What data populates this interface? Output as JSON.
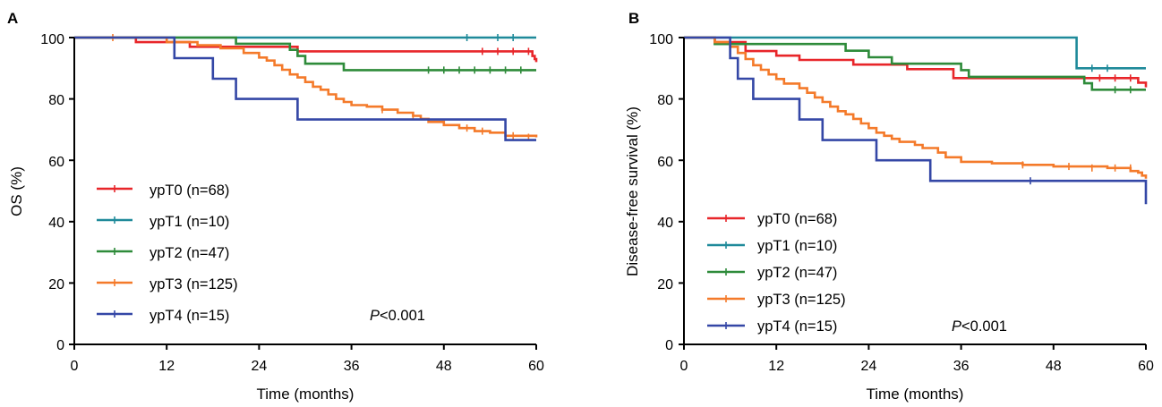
{
  "colors": {
    "ypT0": "#e8262a",
    "ypT1": "#1f8a9a",
    "ypT2": "#2e8b3a",
    "ypT3": "#f47a2a",
    "ypT4": "#3447a6"
  },
  "chart_data": [
    {
      "type": "line",
      "panel": "A",
      "xlabel": "Time (months)",
      "ylabel": "OS (%)",
      "xlim": [
        0,
        60
      ],
      "ylim": [
        0,
        100
      ],
      "xticks": [
        0,
        12,
        24,
        36,
        48,
        60
      ],
      "yticks": [
        0,
        20,
        40,
        60,
        80,
        100
      ],
      "grid": false,
      "legend_position": "bottom-left",
      "annotation": {
        "italic": "P",
        "rest": "<0.001"
      },
      "series": [
        {
          "name": "ypT0 (n=68)",
          "color": "ypT0",
          "steps": [
            [
              0,
              100
            ],
            [
              8,
              98.5
            ],
            [
              15,
              97
            ],
            [
              29,
              95.5
            ],
            [
              59.5,
              94
            ],
            [
              59.8,
              93
            ],
            [
              60,
              92
            ]
          ],
          "censors": [
            [
              53,
              95.5
            ],
            [
              55,
              95.5
            ],
            [
              57,
              95.5
            ],
            [
              59,
              95.5
            ]
          ]
        },
        {
          "name": "ypT1 (n=10)",
          "color": "ypT1",
          "steps": [
            [
              0,
              100
            ],
            [
              60,
              100
            ]
          ],
          "censors": [
            [
              51,
              100
            ],
            [
              55,
              100
            ],
            [
              57,
              100
            ]
          ]
        },
        {
          "name": "ypT2 (n=47)",
          "color": "ypT2",
          "steps": [
            [
              0,
              100
            ],
            [
              21,
              98
            ],
            [
              28,
              96
            ],
            [
              29,
              94
            ],
            [
              30,
              91.5
            ],
            [
              35,
              89.4
            ],
            [
              60,
              89.4
            ]
          ],
          "censors": [
            [
              46,
              89.4
            ],
            [
              48,
              89.4
            ],
            [
              50,
              89.4
            ],
            [
              52,
              89.4
            ],
            [
              54,
              89.4
            ],
            [
              56,
              89.4
            ],
            [
              58,
              89.4
            ]
          ]
        },
        {
          "name": "ypT3 (n=125)",
          "color": "ypT3",
          "steps": [
            [
              0,
              100
            ],
            [
              12,
              98.5
            ],
            [
              16,
              97.5
            ],
            [
              19,
              96.5
            ],
            [
              22,
              95
            ],
            [
              24,
              93.5
            ],
            [
              25,
              92.5
            ],
            [
              26,
              91
            ],
            [
              27,
              89.5
            ],
            [
              28,
              88
            ],
            [
              29,
              87
            ],
            [
              30,
              85.5
            ],
            [
              31,
              84
            ],
            [
              32,
              83
            ],
            [
              33,
              81.5
            ],
            [
              34,
              80
            ],
            [
              35,
              79
            ],
            [
              36,
              78
            ],
            [
              38,
              77.5
            ],
            [
              40,
              76.5
            ],
            [
              42,
              75.5
            ],
            [
              44,
              74.5
            ],
            [
              45,
              73.5
            ],
            [
              46,
              72.5
            ],
            [
              48,
              71.5
            ],
            [
              50,
              70.5
            ],
            [
              52,
              69.5
            ],
            [
              54,
              69
            ],
            [
              56,
              68
            ],
            [
              60,
              67.5
            ]
          ],
          "censors": [
            [
              5,
              100
            ],
            [
              40,
              76.5
            ],
            [
              44,
              74.5
            ],
            [
              51,
              70.5
            ],
            [
              53,
              69.5
            ],
            [
              57,
              68
            ],
            [
              59,
              67.5
            ]
          ]
        },
        {
          "name": "ypT4 (n=15)",
          "color": "ypT4",
          "steps": [
            [
              0,
              100
            ],
            [
              13,
              93.3
            ],
            [
              18,
              86.6
            ],
            [
              21,
              80
            ],
            [
              29,
              73.3
            ],
            [
              56,
              66.6
            ],
            [
              60,
              66.6
            ]
          ],
          "censors": []
        }
      ]
    },
    {
      "type": "line",
      "panel": "B",
      "xlabel": "Time (months)",
      "ylabel": "Disease-free survival (%)",
      "xlim": [
        0,
        60
      ],
      "ylim": [
        0,
        100
      ],
      "xticks": [
        0,
        12,
        24,
        36,
        48,
        60
      ],
      "yticks": [
        0,
        20,
        40,
        60,
        80,
        100
      ],
      "grid": false,
      "legend_position": "bottom-left",
      "annotation": {
        "italic": "P",
        "rest": "<0.001"
      },
      "series": [
        {
          "name": "ypT0 (n=68)",
          "color": "ypT0",
          "steps": [
            [
              0,
              100
            ],
            [
              4,
              98.5
            ],
            [
              8,
              95.6
            ],
            [
              12,
              94.1
            ],
            [
              15,
              92.7
            ],
            [
              22,
              91.2
            ],
            [
              29,
              89.7
            ],
            [
              35,
              86.8
            ],
            [
              59,
              85.3
            ],
            [
              60,
              83.8
            ]
          ],
          "censors": [
            [
              54,
              86.8
            ],
            [
              56,
              86.8
            ],
            [
              58,
              86.8
            ]
          ]
        },
        {
          "name": "ypT1 (n=10)",
          "color": "ypT1",
          "steps": [
            [
              0,
              100
            ],
            [
              51,
              90
            ],
            [
              60,
              90
            ]
          ],
          "censors": [
            [
              53,
              90
            ],
            [
              55,
              90
            ]
          ]
        },
        {
          "name": "ypT2 (n=47)",
          "color": "ypT2",
          "steps": [
            [
              0,
              100
            ],
            [
              4,
              97.9
            ],
            [
              21,
              95.7
            ],
            [
              24,
              93.6
            ],
            [
              27,
              91.5
            ],
            [
              36,
              89.4
            ],
            [
              37,
              87.2
            ],
            [
              52,
              85.1
            ],
            [
              53,
              83
            ],
            [
              60,
              83
            ]
          ],
          "censors": [
            [
              56,
              83
            ],
            [
              58,
              83
            ]
          ]
        },
        {
          "name": "ypT3 (n=125)",
          "color": "ypT3",
          "steps": [
            [
              0,
              100
            ],
            [
              4,
              98.5
            ],
            [
              6,
              97
            ],
            [
              7,
              95
            ],
            [
              8,
              93
            ],
            [
              9,
              91
            ],
            [
              10,
              89.5
            ],
            [
              11,
              88
            ],
            [
              12,
              86.5
            ],
            [
              13,
              85
            ],
            [
              15,
              83.5
            ],
            [
              16,
              82
            ],
            [
              17,
              80.5
            ],
            [
              18,
              79
            ],
            [
              19,
              77.5
            ],
            [
              20,
              76
            ],
            [
              21,
              75
            ],
            [
              22,
              73.5
            ],
            [
              23,
              72
            ],
            [
              24,
              70.5
            ],
            [
              25,
              69
            ],
            [
              26,
              68
            ],
            [
              27,
              67
            ],
            [
              28,
              66
            ],
            [
              30,
              65
            ],
            [
              31,
              64
            ],
            [
              33,
              62.5
            ],
            [
              34,
              61
            ],
            [
              36,
              59.5
            ],
            [
              40,
              59
            ],
            [
              44,
              58.5
            ],
            [
              48,
              58
            ],
            [
              55,
              57.5
            ],
            [
              58,
              56.5
            ],
            [
              59,
              56
            ],
            [
              59.5,
              55
            ],
            [
              60,
              54
            ]
          ],
          "censors": [
            [
              44,
              58.5
            ],
            [
              50,
              58
            ],
            [
              53,
              57.5
            ],
            [
              56,
              57.5
            ],
            [
              58,
              57.5
            ]
          ]
        },
        {
          "name": "ypT4 (n=15)",
          "color": "ypT4",
          "steps": [
            [
              0,
              100
            ],
            [
              6,
              93.3
            ],
            [
              7,
              86.6
            ],
            [
              9,
              80
            ],
            [
              15,
              73.3
            ],
            [
              18,
              66.6
            ],
            [
              25,
              60
            ],
            [
              32,
              53.3
            ],
            [
              59.7,
              53.3
            ],
            [
              60,
              45.7
            ]
          ],
          "censors": [
            [
              45,
              53.3
            ]
          ]
        }
      ]
    }
  ]
}
